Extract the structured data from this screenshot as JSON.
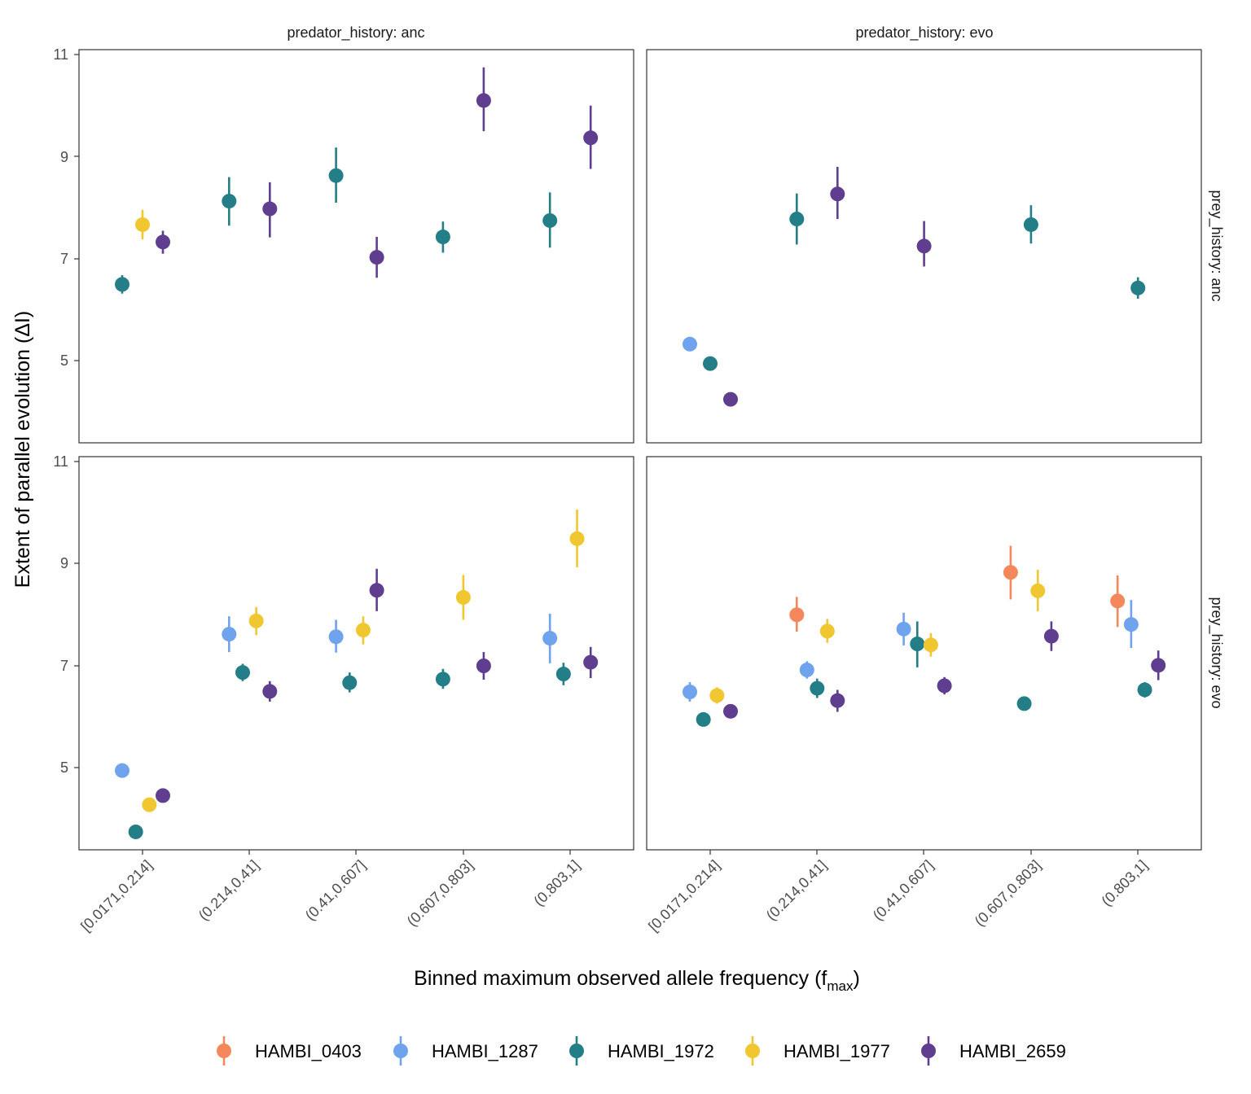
{
  "chart_data": {
    "type": "scatter",
    "xlabel_main": "Binned maximum observed allele frequency (f",
    "xlabel_sub": "max",
    "xlabel_end": ")",
    "ylabel": "Extent of parallel evolution (ΔI)",
    "categories": [
      "[0.0171,0.214]",
      "(0.214,0.41]",
      "(0.41,0.607]",
      "(0.607,0.803]",
      "(0.803,1]"
    ],
    "y_ticks": [
      "5",
      "7",
      "9",
      "11"
    ],
    "y_tick_values": [
      5,
      7,
      9,
      11
    ],
    "ylim": [
      3.6,
      11.1
    ],
    "col_facets": [
      "predator_history: anc",
      "predator_history: evo"
    ],
    "row_facets": [
      "prey_history: anc",
      "prey_history: evo"
    ],
    "legend_position": "bottom",
    "series": [
      {
        "name": "HAMBI_0403",
        "color": "#F4875B"
      },
      {
        "name": "HAMBI_1287",
        "color": "#6FA3EE"
      },
      {
        "name": "HAMBI_1972",
        "color": "#237E87"
      },
      {
        "name": "HAMBI_1977",
        "color": "#F0C730"
      },
      {
        "name": "HAMBI_2659",
        "color": "#5F3E8F"
      }
    ],
    "panels": [
      {
        "col": 0,
        "row": 0,
        "points": [
          {
            "series": "HAMBI_1972",
            "bin": 0,
            "y": 6.5,
            "lo": 6.32,
            "hi": 6.68
          },
          {
            "series": "HAMBI_1977",
            "bin": 0,
            "y": 7.67,
            "lo": 7.38,
            "hi": 7.96
          },
          {
            "series": "HAMBI_2659",
            "bin": 0,
            "y": 7.33,
            "lo": 7.1,
            "hi": 7.55
          },
          {
            "series": "HAMBI_1972",
            "bin": 1,
            "y": 8.13,
            "lo": 7.65,
            "hi": 8.6
          },
          {
            "series": "HAMBI_2659",
            "bin": 1,
            "y": 7.98,
            "lo": 7.42,
            "hi": 8.5
          },
          {
            "series": "HAMBI_1972",
            "bin": 2,
            "y": 8.63,
            "lo": 8.1,
            "hi": 9.18
          },
          {
            "series": "HAMBI_2659",
            "bin": 2,
            "y": 7.03,
            "lo": 6.63,
            "hi": 7.43
          },
          {
            "series": "HAMBI_1972",
            "bin": 3,
            "y": 7.43,
            "lo": 7.12,
            "hi": 7.73
          },
          {
            "series": "HAMBI_2659",
            "bin": 3,
            "y": 10.1,
            "lo": 9.5,
            "hi": 10.75
          },
          {
            "series": "HAMBI_1972",
            "bin": 4,
            "y": 7.75,
            "lo": 7.22,
            "hi": 8.3
          },
          {
            "series": "HAMBI_2659",
            "bin": 4,
            "y": 9.37,
            "lo": 8.76,
            "hi": 10.0
          }
        ]
      },
      {
        "col": 1,
        "row": 0,
        "points": [
          {
            "series": "HAMBI_1287",
            "bin": 0,
            "y": 5.33,
            "lo": 5.25,
            "hi": 5.41
          },
          {
            "series": "HAMBI_1972",
            "bin": 0,
            "y": 4.95,
            "lo": 4.87,
            "hi": 5.03
          },
          {
            "series": "HAMBI_2659",
            "bin": 0,
            "y": 4.25,
            "lo": 4.17,
            "hi": 4.33
          },
          {
            "series": "HAMBI_1972",
            "bin": 1,
            "y": 7.78,
            "lo": 7.28,
            "hi": 8.28
          },
          {
            "series": "HAMBI_2659",
            "bin": 1,
            "y": 8.27,
            "lo": 7.78,
            "hi": 8.8
          },
          {
            "series": "HAMBI_2659",
            "bin": 2,
            "y": 7.25,
            "lo": 6.85,
            "hi": 7.74
          },
          {
            "series": "HAMBI_1972",
            "bin": 3,
            "y": 7.67,
            "lo": 7.3,
            "hi": 8.05
          },
          {
            "series": "HAMBI_1972",
            "bin": 4,
            "y": 6.43,
            "lo": 6.22,
            "hi": 6.64
          }
        ]
      },
      {
        "col": 0,
        "row": 1,
        "points": [
          {
            "series": "HAMBI_1287",
            "bin": 0,
            "y": 4.95,
            "lo": 4.87,
            "hi": 5.03
          },
          {
            "series": "HAMBI_1972",
            "bin": 0,
            "y": 3.75,
            "lo": 3.67,
            "hi": 3.83
          },
          {
            "series": "HAMBI_1977",
            "bin": 0,
            "y": 4.28,
            "lo": 4.2,
            "hi": 4.36
          },
          {
            "series": "HAMBI_2659",
            "bin": 0,
            "y": 4.46,
            "lo": 4.38,
            "hi": 4.54
          },
          {
            "series": "HAMBI_1287",
            "bin": 1,
            "y": 7.62,
            "lo": 7.27,
            "hi": 7.97
          },
          {
            "series": "HAMBI_1972",
            "bin": 1,
            "y": 6.87,
            "lo": 6.7,
            "hi": 7.04
          },
          {
            "series": "HAMBI_1977",
            "bin": 1,
            "y": 7.88,
            "lo": 7.6,
            "hi": 8.15
          },
          {
            "series": "HAMBI_2659",
            "bin": 1,
            "y": 6.5,
            "lo": 6.3,
            "hi": 6.7
          },
          {
            "series": "HAMBI_1287",
            "bin": 2,
            "y": 7.57,
            "lo": 7.26,
            "hi": 7.9
          },
          {
            "series": "HAMBI_1972",
            "bin": 2,
            "y": 6.67,
            "lo": 6.48,
            "hi": 6.87
          },
          {
            "series": "HAMBI_1977",
            "bin": 2,
            "y": 7.7,
            "lo": 7.42,
            "hi": 7.97
          },
          {
            "series": "HAMBI_2659",
            "bin": 2,
            "y": 8.48,
            "lo": 8.07,
            "hi": 8.9
          },
          {
            "series": "HAMBI_1972",
            "bin": 3,
            "y": 6.74,
            "lo": 6.55,
            "hi": 6.94
          },
          {
            "series": "HAMBI_1977",
            "bin": 3,
            "y": 8.34,
            "lo": 7.9,
            "hi": 8.78
          },
          {
            "series": "HAMBI_2659",
            "bin": 3,
            "y": 7.0,
            "lo": 6.73,
            "hi": 7.27
          },
          {
            "series": "HAMBI_1287",
            "bin": 4,
            "y": 7.54,
            "lo": 7.05,
            "hi": 8.02
          },
          {
            "series": "HAMBI_1972",
            "bin": 4,
            "y": 6.84,
            "lo": 6.62,
            "hi": 7.06
          },
          {
            "series": "HAMBI_1977",
            "bin": 4,
            "y": 9.49,
            "lo": 8.93,
            "hi": 10.06
          },
          {
            "series": "HAMBI_2659",
            "bin": 4,
            "y": 7.07,
            "lo": 6.76,
            "hi": 7.37
          }
        ]
      },
      {
        "col": 1,
        "row": 1,
        "points": [
          {
            "series": "HAMBI_1287",
            "bin": 0,
            "y": 6.49,
            "lo": 6.3,
            "hi": 6.68
          },
          {
            "series": "HAMBI_1972",
            "bin": 0,
            "y": 5.95,
            "lo": 5.87,
            "hi": 6.03
          },
          {
            "series": "HAMBI_1977",
            "bin": 0,
            "y": 6.42,
            "lo": 6.26,
            "hi": 6.58
          },
          {
            "series": "HAMBI_2659",
            "bin": 0,
            "y": 6.11,
            "lo": 6.03,
            "hi": 6.19
          },
          {
            "series": "HAMBI_0403",
            "bin": 1,
            "y": 8.0,
            "lo": 7.67,
            "hi": 8.35
          },
          {
            "series": "HAMBI_1287",
            "bin": 1,
            "y": 6.92,
            "lo": 6.75,
            "hi": 7.09
          },
          {
            "series": "HAMBI_1972",
            "bin": 1,
            "y": 6.56,
            "lo": 6.37,
            "hi": 6.75
          },
          {
            "series": "HAMBI_1977",
            "bin": 1,
            "y": 7.68,
            "lo": 7.45,
            "hi": 7.92
          },
          {
            "series": "HAMBI_2659",
            "bin": 1,
            "y": 6.32,
            "lo": 6.1,
            "hi": 6.53
          },
          {
            "series": "HAMBI_1287",
            "bin": 2,
            "y": 7.72,
            "lo": 7.4,
            "hi": 8.04
          },
          {
            "series": "HAMBI_1972",
            "bin": 2,
            "y": 7.43,
            "lo": 6.97,
            "hi": 7.87
          },
          {
            "series": "HAMBI_1977",
            "bin": 2,
            "y": 7.41,
            "lo": 7.18,
            "hi": 7.64
          },
          {
            "series": "HAMBI_2659",
            "bin": 2,
            "y": 6.61,
            "lo": 6.44,
            "hi": 6.78
          },
          {
            "series": "HAMBI_0403",
            "bin": 3,
            "y": 8.83,
            "lo": 8.3,
            "hi": 9.35
          },
          {
            "series": "HAMBI_1972",
            "bin": 3,
            "y": 6.26,
            "lo": 6.13,
            "hi": 6.39
          },
          {
            "series": "HAMBI_1977",
            "bin": 3,
            "y": 8.47,
            "lo": 8.07,
            "hi": 8.88
          },
          {
            "series": "HAMBI_2659",
            "bin": 3,
            "y": 7.58,
            "lo": 7.29,
            "hi": 7.87
          },
          {
            "series": "HAMBI_0403",
            "bin": 4,
            "y": 8.27,
            "lo": 7.76,
            "hi": 8.77
          },
          {
            "series": "HAMBI_1287",
            "bin": 4,
            "y": 7.81,
            "lo": 7.35,
            "hi": 8.29
          },
          {
            "series": "HAMBI_1972",
            "bin": 4,
            "y": 6.53,
            "lo": 6.38,
            "hi": 6.68
          },
          {
            "series": "HAMBI_2659",
            "bin": 4,
            "y": 7.01,
            "lo": 6.72,
            "hi": 7.3
          }
        ]
      }
    ]
  }
}
